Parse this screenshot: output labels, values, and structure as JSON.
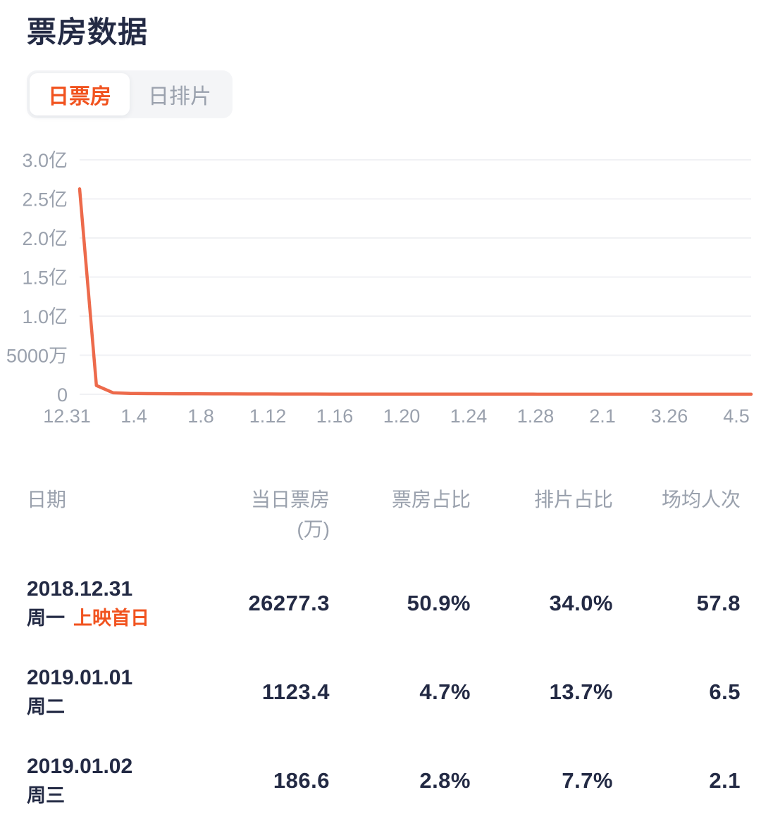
{
  "header": {
    "title": "票房数据"
  },
  "tabs": [
    {
      "label": "日票房",
      "active": true
    },
    {
      "label": "日排片",
      "active": false
    }
  ],
  "accent_color": "#f1531f",
  "chart_data": {
    "type": "line",
    "series_name": "日票房",
    "unit": "万",
    "line_color": "#ed6a4b",
    "grid": "horizontal-only",
    "legend": "none",
    "ylim_wan": [
      0,
      30000
    ],
    "y_tick_labels": [
      "3.0亿",
      "2.5亿",
      "2.0亿",
      "1.5亿",
      "1.0亿",
      "5000万",
      "0"
    ],
    "y_tick_values_wan": [
      30000,
      25000,
      20000,
      15000,
      10000,
      5000,
      0
    ],
    "x_tick_labels": [
      "12.31",
      "1.4",
      "1.8",
      "1.12",
      "1.16",
      "1.20",
      "1.24",
      "1.28",
      "2.1",
      "3.26",
      "4.5"
    ],
    "known_points_wan": {
      "12.31": 26277.3,
      "1.1": 1123.4,
      "1.2": 186.6
    },
    "tail_estimated": true,
    "x_positions_tick_units": [
      0,
      0.25,
      0.5,
      0.75,
      1,
      1.25,
      1.5,
      1.75,
      2,
      2.25,
      2.5,
      2.75,
      3,
      3.25,
      3.5,
      3.75,
      4,
      4.25,
      4.5,
      4.75,
      5,
      5.25,
      5.5,
      5.75,
      6,
      6.25,
      6.5,
      6.75,
      7,
      7.25,
      7.5,
      7.75,
      8,
      9,
      10
    ],
    "values_wan": [
      26277.3,
      1123.4,
      186.6,
      110,
      90,
      80,
      70,
      62,
      56,
      50,
      46,
      42,
      38,
      35,
      32,
      30,
      28,
      26,
      24,
      22,
      21,
      20,
      19,
      18,
      17,
      16,
      15,
      14,
      13,
      12,
      11,
      10,
      9,
      8,
      7
    ]
  },
  "table": {
    "columns": {
      "date": "日期",
      "daily_box_office": "当日票房",
      "daily_box_office_sub": "(万)",
      "box_office_share": "票房占比",
      "screening_share": "排片占比",
      "avg_attendance": "场均人次"
    },
    "rows": [
      {
        "date": "2018.12.31",
        "weekday": "周一",
        "tag": "上映首日",
        "box_office_wan": "26277.3",
        "box_office_share": "50.9%",
        "screening_share": "34.0%",
        "avg_attendance": "57.8"
      },
      {
        "date": "2019.01.01",
        "weekday": "周二",
        "tag": "",
        "box_office_wan": "1123.4",
        "box_office_share": "4.7%",
        "screening_share": "13.7%",
        "avg_attendance": "6.5"
      },
      {
        "date": "2019.01.02",
        "weekday": "周三",
        "tag": "",
        "box_office_wan": "186.6",
        "box_office_share": "2.8%",
        "screening_share": "7.7%",
        "avg_attendance": "2.1"
      }
    ]
  }
}
